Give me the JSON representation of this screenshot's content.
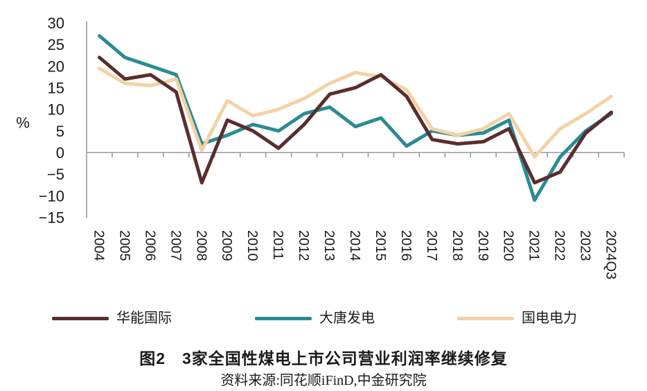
{
  "figure": {
    "caption_title": "图2　3家全国性煤电上市公司营业利润率继续修复",
    "caption_source": "资料来源:同花顺iFinD,中金研究院"
  },
  "chart_data": {
    "type": "line",
    "title": "图2 3家全国性煤电上市公司营业利润率继续修复",
    "source": "资料来源:同花顺iFinD,中金研究院",
    "xlabel": "",
    "ylabel": "%",
    "ylim": [
      -15,
      30
    ],
    "ytick_interval": 5,
    "yticks": [
      "30",
      "25",
      "20",
      "15",
      "10",
      "5",
      "0",
      "−5",
      "−10",
      "−15"
    ],
    "grid": false,
    "legend_position": "bottom",
    "axis_color": "#999999",
    "categories": [
      "2004",
      "2005",
      "2006",
      "2007",
      "2008",
      "2009",
      "2010",
      "2011",
      "2012",
      "2013",
      "2014",
      "2015",
      "2016",
      "2017",
      "2018",
      "2019",
      "2020",
      "2021",
      "2022",
      "2023",
      "2024Q3"
    ],
    "series": [
      {
        "name": "华能国际",
        "color": "#5a2d2e",
        "values": [
          22,
          17,
          18,
          14,
          -7,
          7.5,
          5,
          1,
          6.5,
          13.5,
          15,
          18,
          13,
          3,
          2,
          2.5,
          5.5,
          -7,
          -4.5,
          4.5,
          9.3
        ]
      },
      {
        "name": "大唐发电",
        "color": "#2b8b94",
        "values": [
          27,
          22,
          20,
          18,
          2,
          4,
          6.5,
          5,
          9,
          10.5,
          6,
          8,
          1.5,
          5,
          4,
          4.5,
          7.5,
          -11,
          -1,
          5,
          9
        ]
      },
      {
        "name": "国电电力",
        "color": "#f4d2a5",
        "values": [
          19.5,
          16,
          15.5,
          17,
          0.5,
          12,
          8.5,
          10,
          12.5,
          16,
          18.5,
          17.5,
          14.5,
          5.5,
          4,
          5.5,
          9,
          -1,
          5.5,
          9,
          13
        ]
      }
    ]
  }
}
